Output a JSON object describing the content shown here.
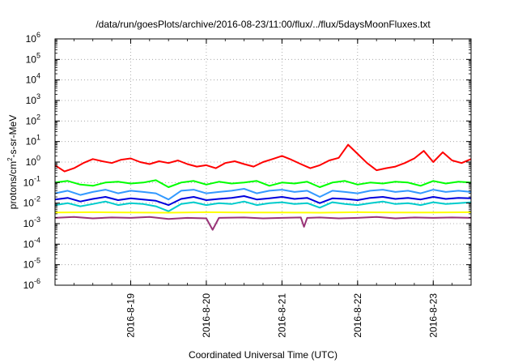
{
  "chart_data": {
    "type": "line",
    "title": "/data/run/goesPlots/archive/2016-08-23/11:00/flux/../flux/5daysMoonFluxes.txt",
    "xlabel": "Coordinated Universal Time (UTC)",
    "ylabel": {
      "base": "protons/cm",
      "sup": "2",
      "rest": "-s-sr-MeV"
    },
    "yscale": "log",
    "ylim": [
      1e-06,
      1000000.0
    ],
    "y_ticks": [
      {
        "value": 1e-06,
        "base": "10",
        "exp": "-6"
      },
      {
        "value": 1e-05,
        "base": "10",
        "exp": "-5"
      },
      {
        "value": 0.0001,
        "base": "10",
        "exp": "-4"
      },
      {
        "value": 0.001,
        "base": "10",
        "exp": "-3"
      },
      {
        "value": 0.01,
        "base": "10",
        "exp": "-2"
      },
      {
        "value": 0.1,
        "base": "10",
        "exp": "-1"
      },
      {
        "value": 1,
        "base": "10",
        "exp": "0"
      },
      {
        "value": 10.0,
        "base": "10",
        "exp": "1"
      },
      {
        "value": 100.0,
        "base": "10",
        "exp": "2"
      },
      {
        "value": 1000.0,
        "base": "10",
        "exp": "3"
      },
      {
        "value": 10000.0,
        "base": "10",
        "exp": "4"
      },
      {
        "value": 100000.0,
        "base": "10",
        "exp": "5"
      },
      {
        "value": 1000000.0,
        "base": "10",
        "exp": "6"
      }
    ],
    "xlim": [
      "2016-08-18T00:00",
      "2016-08-23T12:00"
    ],
    "x_ticks": [
      {
        "value": "2016-08-19T00:00",
        "label": "2016-8-19"
      },
      {
        "value": "2016-08-20T00:00",
        "label": "2016-8-20"
      },
      {
        "value": "2016-08-21T00:00",
        "label": "2016-8-21"
      },
      {
        "value": "2016-08-22T00:00",
        "label": "2016-8-22"
      },
      {
        "value": "2016-08-23T00:00",
        "label": "2016-8-23"
      }
    ],
    "grid": "dotted, major ticks",
    "legend": "none",
    "series": [
      {
        "color": "#ff0000",
        "x": [
          "2016-08-18T00:00",
          "2016-08-18T03:00",
          "2016-08-18T06:00",
          "2016-08-18T09:00",
          "2016-08-18T12:00",
          "2016-08-18T15:00",
          "2016-08-18T18:00",
          "2016-08-18T21:00",
          "2016-08-19T00:00",
          "2016-08-19T03:00",
          "2016-08-19T06:00",
          "2016-08-19T09:00",
          "2016-08-19T12:00",
          "2016-08-19T15:00",
          "2016-08-19T18:00",
          "2016-08-19T21:00",
          "2016-08-20T00:00",
          "2016-08-20T03:00",
          "2016-08-20T06:00",
          "2016-08-20T09:00",
          "2016-08-20T12:00",
          "2016-08-20T15:00",
          "2016-08-20T18:00",
          "2016-08-20T21:00",
          "2016-08-21T00:00",
          "2016-08-21T03:00",
          "2016-08-21T06:00",
          "2016-08-21T09:00",
          "2016-08-21T12:00",
          "2016-08-21T15:00",
          "2016-08-21T18:00",
          "2016-08-21T21:00",
          "2016-08-22T00:00",
          "2016-08-22T03:00",
          "2016-08-22T06:00",
          "2016-08-22T09:00",
          "2016-08-22T12:00",
          "2016-08-22T15:00",
          "2016-08-22T18:00",
          "2016-08-22T21:00",
          "2016-08-23T00:00",
          "2016-08-23T03:00",
          "2016-08-23T06:00",
          "2016-08-23T09:00",
          "2016-08-23T12:00"
        ],
        "values": [
          0.7,
          0.35,
          0.5,
          0.9,
          1.4,
          1.1,
          0.9,
          1.3,
          1.5,
          1.0,
          0.8,
          1.1,
          0.9,
          1.2,
          0.8,
          0.6,
          0.7,
          0.5,
          0.9,
          1.1,
          0.8,
          0.6,
          1.0,
          1.4,
          2.0,
          1.3,
          0.8,
          0.5,
          0.7,
          1.2,
          1.6,
          7.0,
          2.5,
          0.9,
          0.4,
          0.5,
          0.6,
          0.9,
          1.5,
          3.5,
          1.0,
          3.0,
          1.2,
          0.9,
          1.4
        ]
      },
      {
        "color": "#00ff00",
        "x": [
          "2016-08-18T00:00",
          "2016-08-18T04:00",
          "2016-08-18T08:00",
          "2016-08-18T12:00",
          "2016-08-18T16:00",
          "2016-08-18T20:00",
          "2016-08-19T00:00",
          "2016-08-19T04:00",
          "2016-08-19T08:00",
          "2016-08-19T12:00",
          "2016-08-19T16:00",
          "2016-08-19T20:00",
          "2016-08-20T00:00",
          "2016-08-20T04:00",
          "2016-08-20T08:00",
          "2016-08-20T12:00",
          "2016-08-20T16:00",
          "2016-08-20T20:00",
          "2016-08-21T00:00",
          "2016-08-21T04:00",
          "2016-08-21T08:00",
          "2016-08-21T12:00",
          "2016-08-21T16:00",
          "2016-08-21T20:00",
          "2016-08-22T00:00",
          "2016-08-22T04:00",
          "2016-08-22T08:00",
          "2016-08-22T12:00",
          "2016-08-22T16:00",
          "2016-08-22T20:00",
          "2016-08-23T00:00",
          "2016-08-23T04:00",
          "2016-08-23T08:00",
          "2016-08-23T12:00"
        ],
        "values": [
          0.1,
          0.12,
          0.08,
          0.07,
          0.1,
          0.11,
          0.09,
          0.1,
          0.13,
          0.06,
          0.1,
          0.12,
          0.08,
          0.11,
          0.09,
          0.1,
          0.12,
          0.07,
          0.1,
          0.09,
          0.11,
          0.06,
          0.1,
          0.12,
          0.08,
          0.1,
          0.09,
          0.11,
          0.1,
          0.07,
          0.12,
          0.09,
          0.11,
          0.1
        ]
      },
      {
        "color": "#00cccc",
        "x": [
          "2016-08-18T00:00",
          "2016-08-18T04:00",
          "2016-08-18T08:00",
          "2016-08-18T12:00",
          "2016-08-18T16:00",
          "2016-08-18T20:00",
          "2016-08-19T00:00",
          "2016-08-19T04:00",
          "2016-08-19T08:00",
          "2016-08-19T12:00",
          "2016-08-19T16:00",
          "2016-08-19T20:00",
          "2016-08-20T00:00",
          "2016-08-20T04:00",
          "2016-08-20T08:00",
          "2016-08-20T12:00",
          "2016-08-20T16:00",
          "2016-08-20T20:00",
          "2016-08-21T00:00",
          "2016-08-21T04:00",
          "2016-08-21T08:00",
          "2016-08-21T12:00",
          "2016-08-21T16:00",
          "2016-08-21T20:00",
          "2016-08-22T00:00",
          "2016-08-22T04:00",
          "2016-08-22T08:00",
          "2016-08-22T12:00",
          "2016-08-22T16:00",
          "2016-08-22T20:00",
          "2016-08-23T00:00",
          "2016-08-23T04:00",
          "2016-08-23T08:00",
          "2016-08-23T12:00"
        ],
        "values": [
          0.008,
          0.01,
          0.007,
          0.009,
          0.012,
          0.008,
          0.01,
          0.009,
          0.007,
          0.004,
          0.009,
          0.011,
          0.008,
          0.01,
          0.009,
          0.012,
          0.008,
          0.01,
          0.011,
          0.009,
          0.01,
          0.006,
          0.011,
          0.009,
          0.008,
          0.01,
          0.012,
          0.009,
          0.01,
          0.008,
          0.011,
          0.009,
          0.01,
          0.011
        ]
      },
      {
        "color": "#3399ff",
        "x": [
          "2016-08-18T00:00",
          "2016-08-18T04:00",
          "2016-08-18T08:00",
          "2016-08-18T12:00",
          "2016-08-18T16:00",
          "2016-08-18T20:00",
          "2016-08-19T00:00",
          "2016-08-19T04:00",
          "2016-08-19T08:00",
          "2016-08-19T12:00",
          "2016-08-19T16:00",
          "2016-08-19T20:00",
          "2016-08-20T00:00",
          "2016-08-20T04:00",
          "2016-08-20T08:00",
          "2016-08-20T12:00",
          "2016-08-20T16:00",
          "2016-08-20T20:00",
          "2016-08-21T00:00",
          "2016-08-21T04:00",
          "2016-08-21T08:00",
          "2016-08-21T12:00",
          "2016-08-21T16:00",
          "2016-08-21T20:00",
          "2016-08-22T00:00",
          "2016-08-22T04:00",
          "2016-08-22T08:00",
          "2016-08-22T12:00",
          "2016-08-22T16:00",
          "2016-08-22T20:00",
          "2016-08-23T00:00",
          "2016-08-23T04:00",
          "2016-08-23T08:00",
          "2016-08-23T12:00"
        ],
        "values": [
          0.03,
          0.04,
          0.025,
          0.035,
          0.045,
          0.03,
          0.04,
          0.035,
          0.03,
          0.015,
          0.04,
          0.045,
          0.03,
          0.035,
          0.04,
          0.05,
          0.03,
          0.04,
          0.045,
          0.035,
          0.04,
          0.02,
          0.04,
          0.035,
          0.03,
          0.04,
          0.045,
          0.035,
          0.04,
          0.03,
          0.045,
          0.035,
          0.04,
          0.035
        ]
      },
      {
        "color": "#0000dd",
        "x": [
          "2016-08-18T00:00",
          "2016-08-18T04:00",
          "2016-08-18T08:00",
          "2016-08-18T12:00",
          "2016-08-18T16:00",
          "2016-08-18T20:00",
          "2016-08-19T00:00",
          "2016-08-19T04:00",
          "2016-08-19T08:00",
          "2016-08-19T12:00",
          "2016-08-19T16:00",
          "2016-08-19T20:00",
          "2016-08-20T00:00",
          "2016-08-20T04:00",
          "2016-08-20T08:00",
          "2016-08-20T12:00",
          "2016-08-20T16:00",
          "2016-08-20T20:00",
          "2016-08-21T00:00",
          "2016-08-21T04:00",
          "2016-08-21T08:00",
          "2016-08-21T12:00",
          "2016-08-21T16:00",
          "2016-08-21T20:00",
          "2016-08-22T00:00",
          "2016-08-22T04:00",
          "2016-08-22T08:00",
          "2016-08-22T12:00",
          "2016-08-22T16:00",
          "2016-08-22T20:00",
          "2016-08-23T00:00",
          "2016-08-23T04:00",
          "2016-08-23T08:00",
          "2016-08-23T12:00"
        ],
        "values": [
          0.015,
          0.018,
          0.012,
          0.016,
          0.02,
          0.014,
          0.017,
          0.015,
          0.013,
          0.008,
          0.016,
          0.02,
          0.014,
          0.016,
          0.018,
          0.022,
          0.015,
          0.017,
          0.02,
          0.016,
          0.018,
          0.01,
          0.017,
          0.016,
          0.014,
          0.018,
          0.02,
          0.016,
          0.018,
          0.015,
          0.02,
          0.016,
          0.018,
          0.017
        ]
      },
      {
        "color": "#ffff00",
        "x": [
          "2016-08-18T00:00",
          "2016-08-18T12:00",
          "2016-08-19T00:00",
          "2016-08-19T12:00",
          "2016-08-20T00:00",
          "2016-08-20T12:00",
          "2016-08-21T00:00",
          "2016-08-21T12:00",
          "2016-08-22T00:00",
          "2016-08-22T12:00",
          "2016-08-23T00:00",
          "2016-08-23T12:00"
        ],
        "values": [
          0.0035,
          0.0036,
          0.0035,
          0.0034,
          0.0036,
          0.0035,
          0.0035,
          0.0034,
          0.0036,
          0.0035,
          0.0035,
          0.0036
        ]
      },
      {
        "color": "#993377",
        "x": [
          "2016-08-18T00:00",
          "2016-08-18T06:00",
          "2016-08-18T12:00",
          "2016-08-18T18:00",
          "2016-08-19T00:00",
          "2016-08-19T06:00",
          "2016-08-19T12:00",
          "2016-08-19T18:00",
          "2016-08-20T00:00",
          "2016-08-20T02:00",
          "2016-08-20T04:00",
          "2016-08-20T12:00",
          "2016-08-20T18:00",
          "2016-08-21T00:00",
          "2016-08-21T06:00",
          "2016-08-21T07:00",
          "2016-08-21T08:00",
          "2016-08-21T12:00",
          "2016-08-21T18:00",
          "2016-08-22T00:00",
          "2016-08-22T06:00",
          "2016-08-22T12:00",
          "2016-08-22T18:00",
          "2016-08-23T00:00",
          "2016-08-23T06:00",
          "2016-08-23T12:00"
        ],
        "values": [
          0.0019,
          0.0021,
          0.0018,
          0.002,
          0.0019,
          0.0021,
          0.0017,
          0.0019,
          0.0018,
          0.0005,
          0.0019,
          0.002,
          0.0018,
          0.0019,
          0.002,
          0.0007,
          0.0019,
          0.002,
          0.0018,
          0.0019,
          0.0021,
          0.0018,
          0.002,
          0.0019,
          0.002,
          0.0019
        ]
      }
    ]
  }
}
